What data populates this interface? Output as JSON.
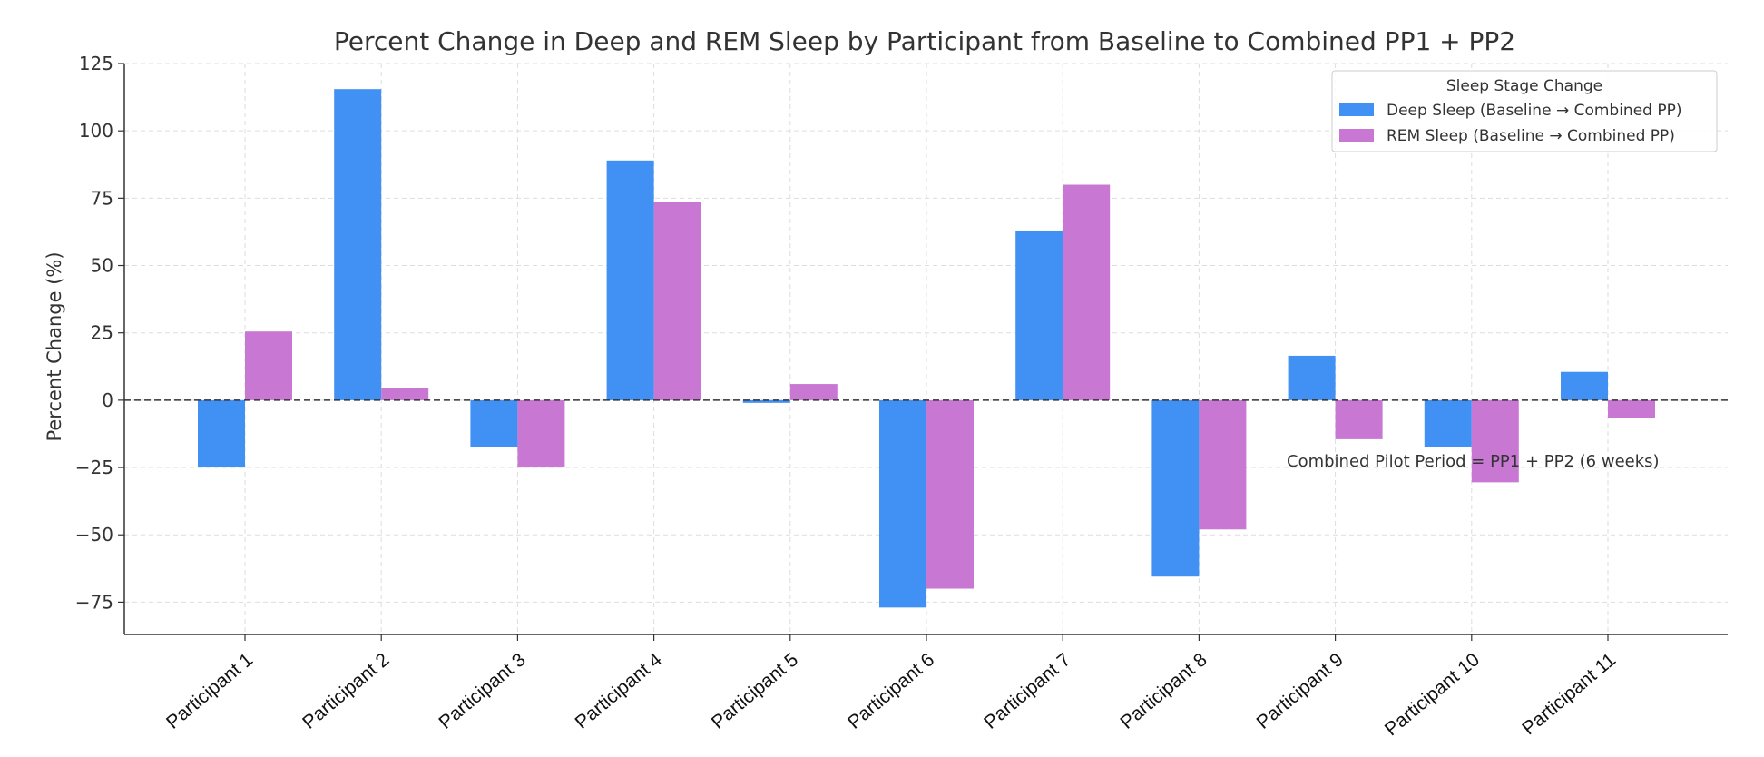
{
  "chart_data": {
    "type": "bar",
    "title": "Percent Change in Deep and REM Sleep by Participant from Baseline to Combined PP1 + PP2",
    "xlabel": "",
    "ylabel": "Percent Change (%)",
    "ylim": [
      -87,
      125
    ],
    "yticks": [
      125,
      100,
      75,
      50,
      25,
      0,
      -25,
      -50,
      -75
    ],
    "grid": true,
    "legend_position": "top-right",
    "legend_title": "Sleep Stage Change",
    "categories": [
      "Participant 1",
      "Participant 2",
      "Participant 3",
      "Participant 4",
      "Participant 5",
      "Participant 6",
      "Participant 7",
      "Participant 8",
      "Participant 9",
      "Participant 10",
      "Participant 11"
    ],
    "series": [
      {
        "name": "Deep Sleep (Baseline → Combined PP)",
        "color": "#4191f5",
        "values": [
          -25,
          115.5,
          -17.5,
          89,
          -1,
          -77,
          63,
          -65.5,
          16.5,
          -17.5,
          10.5
        ]
      },
      {
        "name": "REM Sleep (Baseline → Combined PP)",
        "color": "#c878d2",
        "values": [
          25.5,
          4.5,
          -25,
          73.5,
          6,
          -70,
          80,
          -48,
          -14.5,
          -30.5,
          -6.5
        ]
      }
    ],
    "reference_line": {
      "y": 0,
      "style": "dashed"
    },
    "annotation": "Combined Pilot Period = PP1 + PP2 (6 weeks)"
  }
}
